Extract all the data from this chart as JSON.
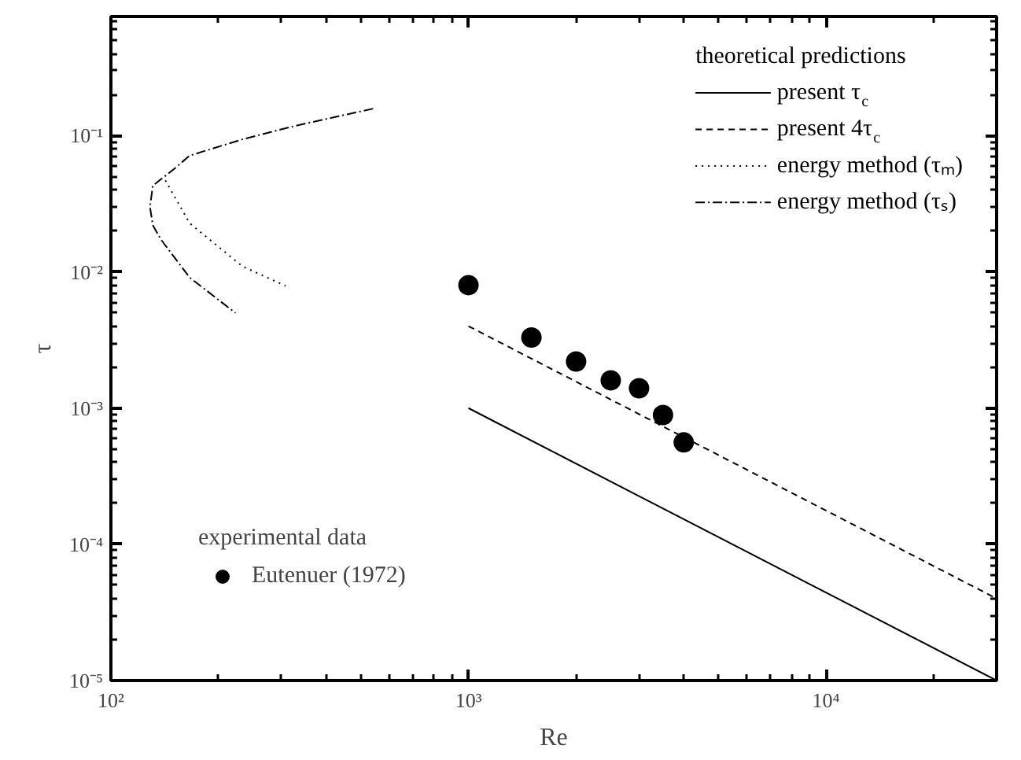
{
  "chart_data": {
    "type": "line",
    "xlabel": "Re",
    "ylabel": "τ",
    "log": "xy",
    "xlim": [
      100,
      30000
    ],
    "ylim": [
      1e-05,
      0.75
    ],
    "xticks": [
      {
        "value": 100,
        "label": "10²"
      },
      {
        "value": 1000,
        "label": "10³"
      },
      {
        "value": 10000,
        "label": "10⁴"
      }
    ],
    "yticks": [
      {
        "value": 1e-05,
        "label": "10⁻⁵"
      },
      {
        "value": 0.0001,
        "label": "10⁻⁴"
      },
      {
        "value": 0.001,
        "label": "10⁻³"
      },
      {
        "value": 0.01,
        "label": "10⁻²"
      },
      {
        "value": 0.1,
        "label": "10⁻¹"
      }
    ],
    "grid": false,
    "legend": "top right",
    "legend_title": "theoretical predictions",
    "annotations": [
      "experimental data"
    ],
    "series": [
      {
        "name": "present τ$_{c}$",
        "type": "line",
        "line_style": "solid",
        "color": "#000000",
        "x": [
          1000,
          30000
        ],
        "values": [
          0.001,
          1e-05
        ]
      },
      {
        "name": "present 4τ$_{c}$",
        "type": "line",
        "line_style": "dashed",
        "color": "#000000",
        "x": [
          1000,
          30000
        ],
        "values": [
          0.004,
          4e-05
        ]
      },
      {
        "name": "energy method (τₘ)",
        "type": "line",
        "line_style": "dotted",
        "color": "#000000",
        "x": [
          142,
          166,
          233,
          308
        ],
        "values": [
          0.047,
          0.0228,
          0.011,
          0.0079
        ]
      },
      {
        "name": "energy method (τₛ)",
        "type": "line",
        "line_style": "dashdot",
        "color": "#000000",
        "x": [
          541,
          327,
          233,
          166,
          150,
          131,
          128.6,
          131,
          138,
          166,
          223
        ],
        "values": [
          0.158,
          0.118,
          0.094,
          0.0714,
          0.0568,
          0.043,
          0.03,
          0.022,
          0.0173,
          0.0091,
          0.005
        ]
      },
      {
        "name": "Eutenuer (1972)",
        "type": "scatter",
        "marker": "circle",
        "color": "#000000",
        "x": [
          1000,
          1500,
          2000,
          2500,
          3000,
          3500,
          4000
        ],
        "values": [
          0.008,
          0.0033,
          0.0022,
          0.0016,
          0.0014,
          0.00089,
          0.00056
        ]
      }
    ]
  }
}
